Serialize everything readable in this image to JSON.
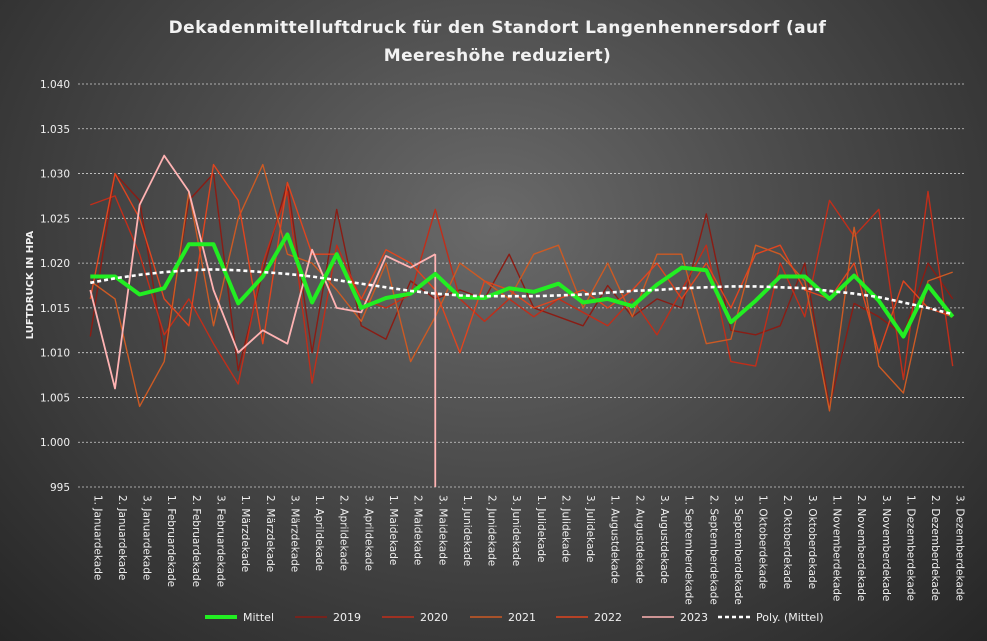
{
  "chart_data": {
    "type": "line",
    "title": "Dekadenmittelluftdruck  für  den  Standort  Langenhennersdorf  (auf\nMeereshöhe  reduziert)",
    "ylabel": "LUFTDRUCK IN HPA",
    "xlabel": "",
    "ylim": [
      995,
      1040
    ],
    "yticks": [
      "995",
      "1.000",
      "1.005",
      "1.010",
      "1.015",
      "1.020",
      "1.025",
      "1.030",
      "1.035",
      "1.040"
    ],
    "ytick_values": [
      995,
      1000,
      1005,
      1010,
      1015,
      1020,
      1025,
      1030,
      1035,
      1040
    ],
    "grid": true,
    "legend_position": "bottom",
    "categories": [
      "1. Januardekade",
      "2. Januardekade",
      "3. Januardekade",
      "1. Februardekade",
      "2. Februardekade",
      "3. Februardekade",
      "1. Märzdekade",
      "2. Märzdekade",
      "3. Märzdekade",
      "1. Aprildekade",
      "2. Aprildekade",
      "3. Aprildekade",
      "1. Maidekade",
      "2. Maidekade",
      "3. Maidekade",
      "1. Junidekade",
      "2. Junidekade",
      "3. Junidekade",
      "1. Julidekade",
      "2. Julidekade",
      "3. Julidekade",
      "1. Augustdekade",
      "2. Augustdekade",
      "3. Augustdekade",
      "1. Septemberdekade",
      "2. Septemberdekade",
      "3. Septemberdekade",
      "1. Oktoberdekade",
      "2. Oktoberdekade",
      "3. Oktoberdekade",
      "1. Novemberdekade",
      "2. Novemberdekade",
      "3. Novemberdekade",
      "1. Dezemberdekade",
      "2. Dezemberdekade",
      "3. Dezemberdekade"
    ],
    "series": [
      {
        "name": "Mittel",
        "color": "#22ee22",
        "width": 4,
        "dash": "",
        "values": [
          1018.5,
          1018.5,
          1016.5,
          1017.2,
          1022.1,
          1022.1,
          1015.5,
          1018.5,
          1023.2,
          1015.6,
          1021.0,
          1015.0,
          1016.1,
          1016.6,
          1018.8,
          1016.2,
          1016.1,
          1017.2,
          1016.8,
          1017.7,
          1015.6,
          1016.0,
          1015.2,
          1017.6,
          1019.5,
          1019.2,
          1013.4,
          1015.8,
          1018.5,
          1018.5,
          1016.0,
          1018.6,
          1015.8,
          1011.8,
          1017.5,
          1014.0
        ]
      },
      {
        "name": "2019",
        "color": "#8a1c14",
        "width": 1.4,
        "dash": "",
        "values": [
          1011.8,
          1030.0,
          1027.0,
          1010.0,
          1027.0,
          1030.0,
          1008.0,
          1019.0,
          1029.0,
          1010.0,
          1026.0,
          1013.0,
          1011.5,
          1018.0,
          1016.0,
          1017.0,
          1016.0,
          1021.0,
          1015.0,
          1014.0,
          1013.0,
          1017.5,
          1014.0,
          1016.0,
          1015.0,
          1025.5,
          1012.5,
          1012.0,
          1013.0,
          1020.0,
          1004.0,
          1015.5,
          1014.0,
          1012.0,
          1020.0,
          1016.0
        ]
      },
      {
        "name": "2020",
        "color": "#c12e1a",
        "width": 1.4,
        "dash": "",
        "values": [
          1026.5,
          1027.5,
          1021.0,
          1012.0,
          1016.0,
          1011.0,
          1006.5,
          1020.0,
          1028.0,
          1006.6,
          1022.0,
          1016.0,
          1015.0,
          1016.5,
          1026.0,
          1016.0,
          1013.5,
          1016.0,
          1014.0,
          1016.0,
          1014.5,
          1013.0,
          1016.0,
          1012.0,
          1017.0,
          1022.0,
          1009.0,
          1008.5,
          1020.0,
          1014.0,
          1027.0,
          1023.0,
          1026.0,
          1007.0,
          1028.0,
          1008.5
        ]
      },
      {
        "name": "2021",
        "color": "#cc5a24",
        "width": 1.4,
        "dash": "",
        "values": [
          1018.0,
          1016.0,
          1004.0,
          1009.0,
          1028.0,
          1013.0,
          1025.0,
          1031.0,
          1021.0,
          1020.0,
          1017.0,
          1013.5,
          1020.0,
          1009.0,
          1014.0,
          1020.0,
          1018.0,
          1016.0,
          1021.0,
          1022.0,
          1015.0,
          1020.0,
          1014.0,
          1021.0,
          1021.0,
          1011.0,
          1011.5,
          1022.0,
          1021.0,
          1018.0,
          1003.5,
          1024.0,
          1008.5,
          1005.5,
          1018.0,
          1019.0
        ]
      },
      {
        "name": "2022",
        "color": "#e0451f",
        "width": 1.4,
        "dash": "",
        "values": [
          1016.0,
          1030.0,
          1025.0,
          1016.0,
          1013.0,
          1031.0,
          1027.0,
          1011.0,
          1029.0,
          1021.0,
          1021.0,
          1016.0,
          1021.5,
          1020.0,
          1017.0,
          1010.0,
          1018.0,
          1017.0,
          1015.0,
          1016.0,
          1017.0,
          1015.0,
          1017.0,
          1020.0,
          1016.0,
          1020.0,
          1015.0,
          1021.0,
          1022.0,
          1017.0,
          1016.0,
          1020.0,
          1010.0,
          1018.0,
          1015.0,
          1014.0
        ]
      },
      {
        "name": "2023",
        "color": "#ffb3b3",
        "width": 1.8,
        "dash": "",
        "values": [
          1017.0,
          1006.0,
          1026.5,
          1032.0,
          1028.0,
          1017.0,
          1010.0,
          1012.5,
          1011.0,
          1021.5,
          1015.0,
          1014.5,
          1020.8,
          1019.5,
          1021.0,
          null,
          null,
          null,
          null,
          null,
          null,
          null,
          null,
          null,
          null,
          null,
          null,
          null,
          null,
          null,
          null,
          null,
          null,
          null,
          null,
          null
        ]
      },
      {
        "name": "Poly. (Mittel)",
        "color": "#ffffff",
        "width": 2.6,
        "dash": "4,3",
        "values": [
          1017.8,
          1018.3,
          1018.7,
          1019.0,
          1019.2,
          1019.3,
          1019.2,
          1019.0,
          1018.8,
          1018.5,
          1018.1,
          1017.7,
          1017.3,
          1016.9,
          1016.6,
          1016.4,
          1016.3,
          1016.3,
          1016.3,
          1016.4,
          1016.5,
          1016.7,
          1016.9,
          1017.0,
          1017.2,
          1017.3,
          1017.4,
          1017.4,
          1017.3,
          1017.2,
          1016.9,
          1016.6,
          1016.2,
          1015.6,
          1015.0,
          1014.3
        ]
      }
    ],
    "legend": [
      "Mittel",
      "2019",
      "2020",
      "2021",
      "2022",
      "2023",
      "Poly. (Mittel)"
    ]
  }
}
